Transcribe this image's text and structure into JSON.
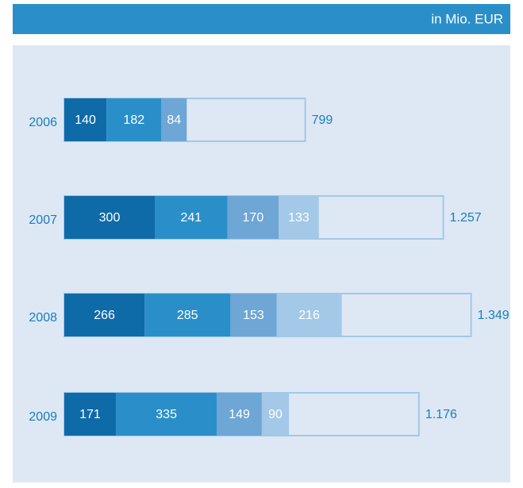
{
  "chart_data": {
    "type": "bar",
    "orientation": "horizontal",
    "stacked": true,
    "subtitle": "in Mio. EUR",
    "categories": [
      "2006",
      "2007",
      "2008",
      "2009"
    ],
    "series": [
      {
        "color": "#0f6aa8",
        "values": [
          140,
          300,
          266,
          171
        ]
      },
      {
        "color": "#2a8fc9",
        "values": [
          182,
          241,
          285,
          335
        ]
      },
      {
        "color": "#6ea6d6",
        "values": [
          84,
          170,
          153,
          149
        ]
      },
      {
        "color": "#a3c8e8",
        "values": [
          null,
          133,
          216,
          90
        ]
      }
    ],
    "totals": {
      "color": "#a3c8e8",
      "values": [
        799,
        1257,
        1349,
        1176
      ],
      "value_labels": [
        "799",
        "1.257",
        "1.349",
        "1.176"
      ]
    }
  }
}
